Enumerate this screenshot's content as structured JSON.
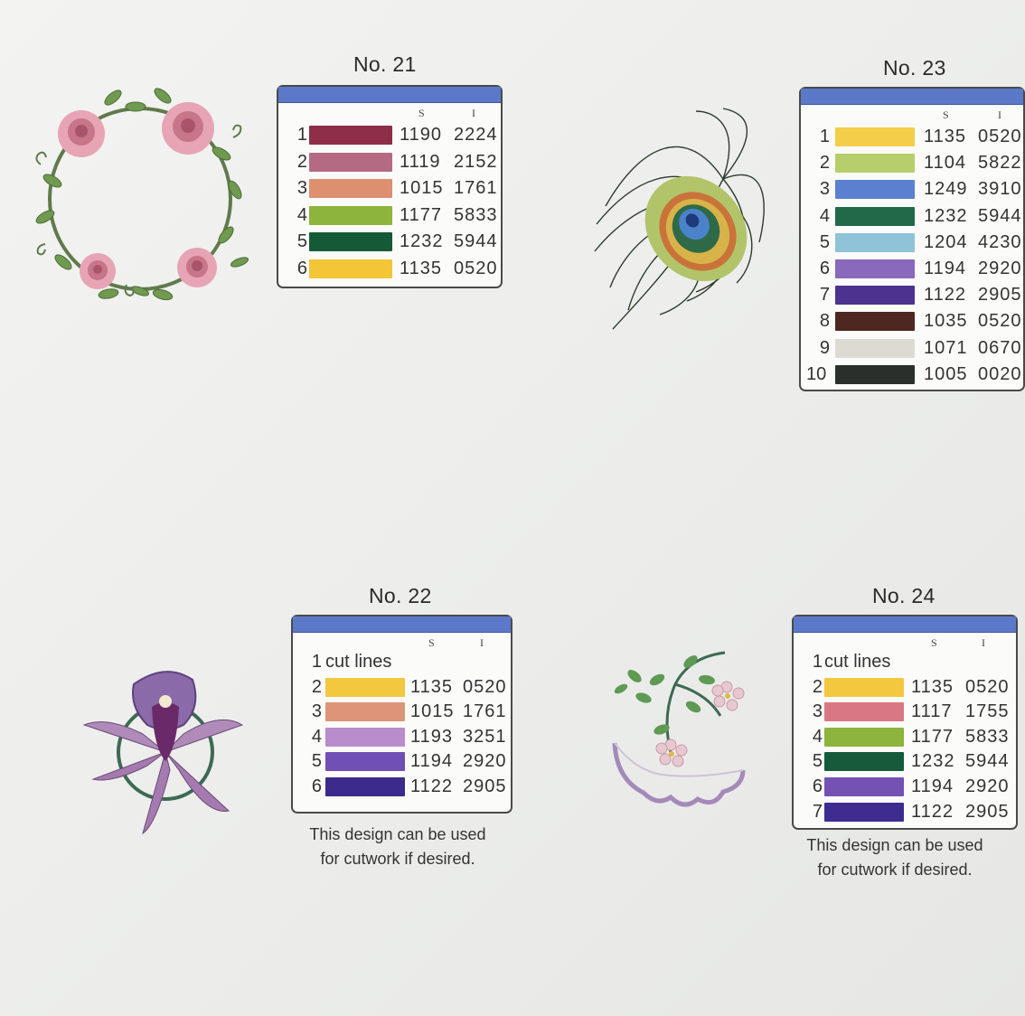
{
  "designs": [
    {
      "title": "No. 21",
      "header": {
        "s": "S",
        "i": "I"
      },
      "rows": [
        {
          "n": "1",
          "color": "#8e2e48",
          "s": "1190",
          "i": "2224"
        },
        {
          "n": "2",
          "color": "#b56a84",
          "s": "1119",
          "i": "2152"
        },
        {
          "n": "3",
          "color": "#dd8f70",
          "s": "1015",
          "i": "1761"
        },
        {
          "n": "4",
          "color": "#8db43c",
          "s": "1177",
          "i": "5833"
        },
        {
          "n": "5",
          "color": "#155a36",
          "s": "1232",
          "i": "5944"
        },
        {
          "n": "6",
          "color": "#f2c636",
          "s": "1135",
          "i": "0520"
        }
      ]
    },
    {
      "title": "No. 23",
      "header": {
        "s": "S",
        "i": "I"
      },
      "rows": [
        {
          "n": "1",
          "color": "#f4cd4a",
          "s": "1135",
          "i": "0520"
        },
        {
          "n": "2",
          "color": "#b6ce6c",
          "s": "1104",
          "i": "5822"
        },
        {
          "n": "3",
          "color": "#5a80cf",
          "s": "1249",
          "i": "3910"
        },
        {
          "n": "4",
          "color": "#22694a",
          "s": "1232",
          "i": "5944"
        },
        {
          "n": "5",
          "color": "#8ec3d8",
          "s": "1204",
          "i": "4230"
        },
        {
          "n": "6",
          "color": "#8a68bc",
          "s": "1194",
          "i": "2920"
        },
        {
          "n": "7",
          "color": "#4d338f",
          "s": "1122",
          "i": "2905"
        },
        {
          "n": "8",
          "color": "#4e2820",
          "s": "1035",
          "i": "0520"
        },
        {
          "n": "9",
          "color": "#dcdad3",
          "s": "1071",
          "i": "0670"
        },
        {
          "n": "10",
          "color": "#2b2f2c",
          "s": "1005",
          "i": "0020"
        }
      ]
    },
    {
      "title": "No. 22",
      "header": {
        "s": "S",
        "i": "I"
      },
      "first_row": {
        "n": "1",
        "text": "cut lines"
      },
      "rows": [
        {
          "n": "2",
          "color": "#f4c83e",
          "s": "1135",
          "i": "0520"
        },
        {
          "n": "3",
          "color": "#dd9478",
          "s": "1015",
          "i": "1761"
        },
        {
          "n": "4",
          "color": "#b98ccc",
          "s": "1193",
          "i": "3251"
        },
        {
          "n": "5",
          "color": "#7050b4",
          "s": "1194",
          "i": "2920"
        },
        {
          "n": "6",
          "color": "#3c2a8c",
          "s": "1122",
          "i": "2905"
        }
      ],
      "note_line1": "This design can be used",
      "note_line2": "for cutwork if desired."
    },
    {
      "title": "No. 24",
      "header": {
        "s": "S",
        "i": "I"
      },
      "first_row": {
        "n": "1",
        "text": "cut lines"
      },
      "rows": [
        {
          "n": "2",
          "color": "#f4c83e",
          "s": "1135",
          "i": "0520"
        },
        {
          "n": "3",
          "color": "#d97884",
          "s": "1117",
          "i": "1755"
        },
        {
          "n": "4",
          "color": "#8db43c",
          "s": "1177",
          "i": "5833"
        },
        {
          "n": "5",
          "color": "#155a3a",
          "s": "1232",
          "i": "5944"
        },
        {
          "n": "6",
          "color": "#7452b4",
          "s": "1194",
          "i": "2920"
        },
        {
          "n": "7",
          "color": "#3e2c90",
          "s": "1122",
          "i": "2905"
        }
      ],
      "note_line1": "This design can be used",
      "note_line2": "for cutwork if desired."
    }
  ],
  "artwork": [
    {
      "icon": "rose-wreath-embroidery-icon"
    },
    {
      "icon": "peacock-feather-embroidery-icon"
    },
    {
      "icon": "orchid-embroidery-icon"
    },
    {
      "icon": "floral-scallop-embroidery-icon"
    }
  ]
}
